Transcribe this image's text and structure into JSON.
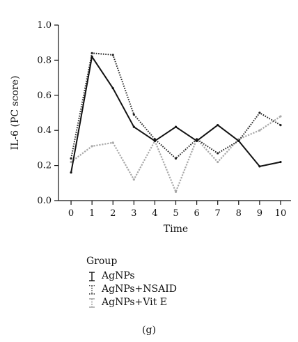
{
  "chart_data": {
    "type": "line",
    "title": "",
    "xlabel": "Time",
    "ylabel": "IL-6 (PC score)",
    "xlim": [
      -0.6,
      10.5
    ],
    "ylim": [
      0.0,
      1.0
    ],
    "x_ticks": [
      0,
      1,
      2,
      3,
      4,
      5,
      6,
      7,
      8,
      9,
      10
    ],
    "y_ticks": [
      "0.0",
      "0.2",
      "0.4",
      "0.6",
      "0.8",
      "1.0"
    ],
    "grid": false,
    "legend_position": "bottom-left",
    "legend_title": "Group",
    "x": [
      0,
      1,
      2,
      3,
      4,
      5,
      6,
      7,
      8,
      9,
      10
    ],
    "series": [
      {
        "name": "AgNPs",
        "values": [
          0.16,
          0.82,
          0.64,
          0.42,
          0.34,
          0.42,
          0.34,
          0.43,
          0.34,
          0.195,
          0.22
        ],
        "color": "#111111",
        "style": "solid"
      },
      {
        "name": "AgNPs+NSAID",
        "values": [
          0.24,
          0.84,
          0.83,
          0.49,
          0.35,
          0.24,
          0.35,
          0.27,
          0.34,
          0.5,
          0.43
        ],
        "color": "#222222",
        "style": "dotted"
      },
      {
        "name": "AgNPs+Vit E",
        "values": [
          0.22,
          0.31,
          0.33,
          0.12,
          0.34,
          0.05,
          0.35,
          0.22,
          0.35,
          0.4,
          0.48
        ],
        "color": "#a8a8a8",
        "style": "dotted-light"
      }
    ]
  },
  "panel_label": "(g)"
}
